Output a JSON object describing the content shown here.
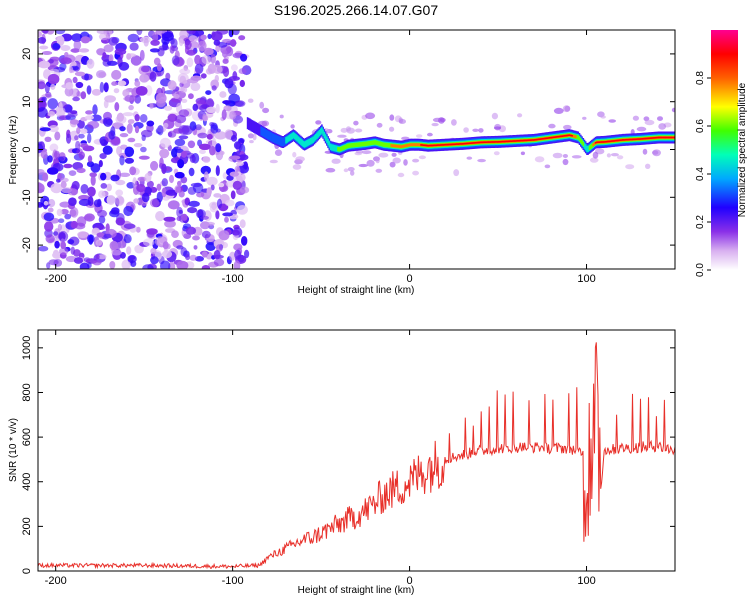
{
  "title": "S196.2025.266.14.07.G07",
  "chart_data": [
    {
      "type": "heatmap",
      "xlabel": "Height of straight line (km)",
      "ylabel": "Frequency (Hz)",
      "xlim": [
        -210,
        150
      ],
      "ylim": [
        -25,
        25
      ],
      "xticks": [
        -200,
        -100,
        0,
        100
      ],
      "yticks": [
        -20,
        -10,
        0,
        10,
        20
      ],
      "colorbar": {
        "label": "Normalized spectral amplitude",
        "range": [
          0,
          1
        ],
        "ticks": [
          "0.0",
          "0.2",
          "0.4",
          "0.6",
          "0.8"
        ],
        "colors": [
          "#ffffff",
          "#c890f0",
          "#7820e0",
          "#2000ff",
          "#00a0ff",
          "#00ffb0",
          "#40ff00",
          "#ffff00",
          "#ff6000",
          "#ff0000",
          "#ff00a0"
        ]
      },
      "noise_region_x": [
        -210,
        -92
      ],
      "ridge": {
        "x": [
          -92,
          -85,
          -78,
          -72,
          -66,
          -60,
          -55,
          -50,
          -45,
          -40,
          -35,
          -30,
          -25,
          -20,
          -15,
          -10,
          -5,
          0,
          5,
          10,
          20,
          30,
          40,
          50,
          60,
          70,
          80,
          90,
          95,
          100,
          105,
          110,
          120,
          130,
          140,
          150
        ],
        "f": [
          5.5,
          4.0,
          2.5,
          1.5,
          3.0,
          1.0,
          2.0,
          4.0,
          0.5,
          0.0,
          0.8,
          1.0,
          1.2,
          1.5,
          1.0,
          0.8,
          0.6,
          1.0,
          1.0,
          0.8,
          1.0,
          1.2,
          1.5,
          1.6,
          1.8,
          2.0,
          2.5,
          3.0,
          2.5,
          0.0,
          1.5,
          1.6,
          2.0,
          2.2,
          2.5,
          2.5
        ],
        "amp": [
          0.3,
          0.3,
          0.35,
          0.4,
          0.5,
          0.5,
          0.45,
          0.45,
          0.5,
          0.6,
          0.6,
          0.6,
          0.65,
          0.65,
          0.7,
          0.75,
          0.8,
          0.85,
          0.85,
          0.9,
          0.9,
          0.9,
          0.92,
          0.92,
          0.92,
          0.92,
          0.95,
          0.95,
          0.7,
          0.5,
          0.9,
          0.95,
          0.95,
          0.95,
          0.95,
          0.95
        ]
      }
    },
    {
      "type": "line",
      "xlabel": "Height of straight line (km)",
      "ylabel": "SNR (10 * v/v)",
      "xlim": [
        -210,
        150
      ],
      "ylim": [
        0,
        1080
      ],
      "xticks": [
        -200,
        -100,
        0,
        100
      ],
      "yticks": [
        0,
        200,
        400,
        600,
        800,
        1000
      ],
      "color": "#e8302a",
      "x": [
        -210,
        -150,
        -100,
        -85,
        -80,
        -75,
        -70,
        -65,
        -60,
        -55,
        -50,
        -45,
        -40,
        -35,
        -30,
        -25,
        -20,
        -15,
        -10,
        -5,
        0,
        5,
        10,
        15,
        20,
        25,
        30,
        35,
        40,
        45,
        50,
        60,
        70,
        80,
        90,
        95,
        100,
        102,
        104,
        106,
        110,
        120,
        130,
        140,
        150
      ],
      "y": [
        25,
        25,
        20,
        25,
        60,
        80,
        100,
        120,
        140,
        150,
        170,
        190,
        210,
        230,
        250,
        270,
        300,
        340,
        360,
        380,
        400,
        430,
        460,
        480,
        500,
        510,
        520,
        530,
        540,
        545,
        550,
        555,
        555,
        550,
        550,
        540,
        520,
        300,
        900,
        200,
        540,
        550,
        555,
        560,
        540
      ]
    }
  ]
}
